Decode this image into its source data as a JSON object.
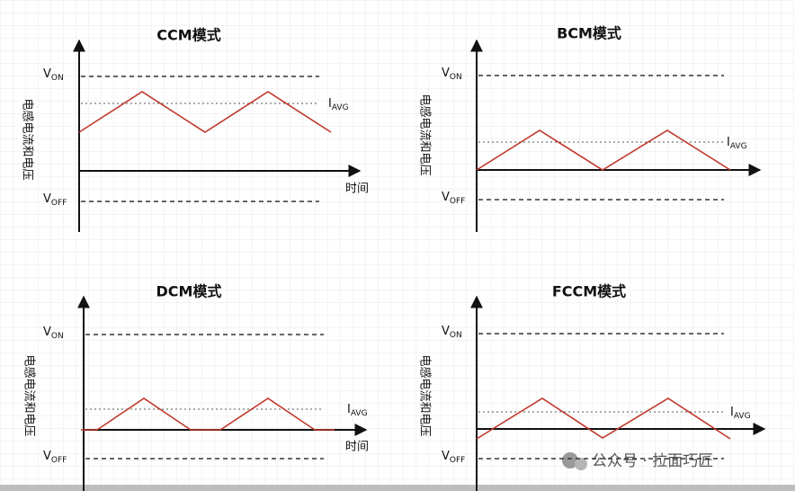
{
  "panels": [
    {
      "title": "CCM模式",
      "y_label": "电感电流和电压",
      "x_label": "时间",
      "von": {
        "main": "V",
        "sub": "ON"
      },
      "voff": {
        "main": "V",
        "sub": "OFF"
      },
      "iavg": {
        "main": "I",
        "sub": "AVG"
      }
    },
    {
      "title": "BCM模式",
      "y_label": "电感电流和电压",
      "von": {
        "main": "V",
        "sub": "ON"
      },
      "voff": {
        "main": "V",
        "sub": "OFF"
      },
      "iavg": {
        "main": "I",
        "sub": "AVG"
      }
    },
    {
      "title": "DCM模式",
      "y_label": "电感电流和电压",
      "x_label": "时间",
      "von": {
        "main": "V",
        "sub": "ON"
      },
      "voff": {
        "main": "V",
        "sub": "OFF"
      },
      "iavg": {
        "main": "I",
        "sub": "AVG"
      }
    },
    {
      "title": "FCCM模式",
      "y_label": "电感电流和电压",
      "von": {
        "main": "V",
        "sub": "ON"
      },
      "voff": {
        "main": "V",
        "sub": "OFF"
      },
      "iavg": {
        "main": "I",
        "sub": "AVG"
      }
    }
  ],
  "watermark": "公众号 · 拉面巧匠"
}
